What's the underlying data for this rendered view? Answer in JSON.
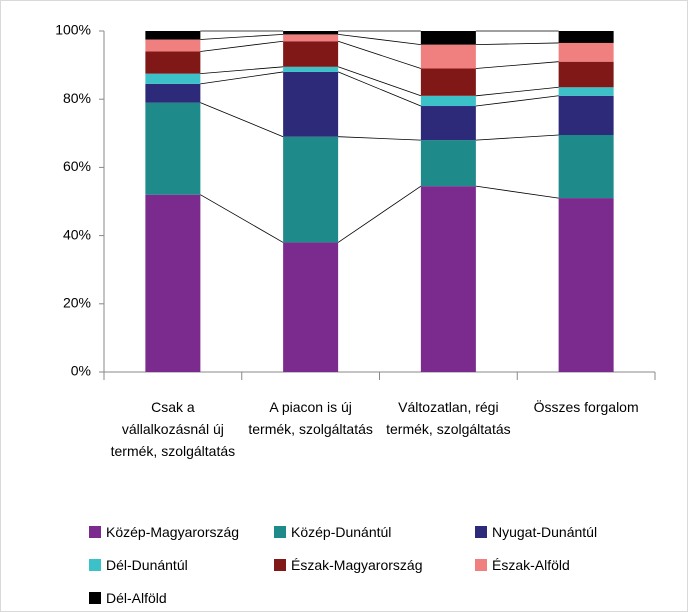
{
  "chart_data": {
    "type": "stacked_bar_100",
    "categories": [
      "Csak a vállalkozásnál új termék, szolgáltatás",
      "A piacon is új termék, szolgáltatás",
      "Változatlan, régi termék, szolgáltatás",
      "Összes forgalom"
    ],
    "series": [
      {
        "name": "Közép-Magyarország",
        "color": "#7b2a8e",
        "values": [
          52,
          38,
          54.5,
          51
        ]
      },
      {
        "name": "Közép-Dunántúl",
        "color": "#1e8a8a",
        "values": [
          27,
          31,
          13.5,
          18.5
        ]
      },
      {
        "name": "Nyugat-Dunántúl",
        "color": "#2e2a7a",
        "values": [
          5.5,
          19,
          10,
          11.5
        ]
      },
      {
        "name": "Dél-Dunántúl",
        "color": "#3cc1c8",
        "values": [
          3,
          1.5,
          3,
          2.5
        ]
      },
      {
        "name": "Észak-Magyarország",
        "color": "#801818",
        "values": [
          6.5,
          7.5,
          8,
          7.5
        ]
      },
      {
        "name": "Észak-Alföld",
        "color": "#f08080",
        "values": [
          3.5,
          2,
          7,
          5.5
        ]
      },
      {
        "name": "Dél-Alföld",
        "color": "#000000",
        "values": [
          2.5,
          1,
          4,
          3.5
        ]
      }
    ],
    "ylim": [
      0,
      100
    ],
    "yticks": [
      {
        "value": 0,
        "label": "0%"
      },
      {
        "value": 20,
        "label": "20%"
      },
      {
        "value": 40,
        "label": "40%"
      },
      {
        "value": 60,
        "label": "60%"
      },
      {
        "value": 80,
        "label": "80%"
      },
      {
        "value": 100,
        "label": "100%"
      }
    ],
    "series_lines": true,
    "legend": "bottom"
  }
}
